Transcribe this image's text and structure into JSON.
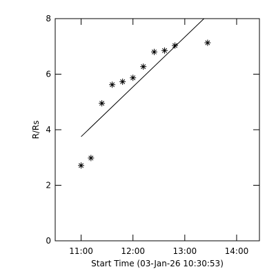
{
  "chart_data": {
    "type": "scatter",
    "y_label": "R/Rs",
    "x_label": "Start Time (03-Jan-26 10:30:53)",
    "xlim": [
      10.5,
      14.44
    ],
    "xticks": [
      {
        "value": 11,
        "label": "11:00"
      },
      {
        "value": 12,
        "label": "12:00"
      },
      {
        "value": 13,
        "label": "13:00"
      },
      {
        "value": 14,
        "label": "14:00"
      }
    ],
    "ylim": [
      0,
      8
    ],
    "yticks": [
      0,
      2,
      4,
      6,
      8
    ],
    "color": "#000000",
    "series": [
      {
        "marker": "asterisk",
        "x": [
          11.0,
          11.19,
          11.4,
          11.6,
          11.8,
          12.0,
          12.2,
          12.41,
          12.61,
          12.81,
          13.44
        ],
        "values": [
          2.71,
          2.98,
          4.95,
          5.62,
          5.73,
          5.87,
          6.27,
          6.8,
          6.85,
          7.03,
          7.13
        ]
      },
      {
        "marker": "line",
        "x": [
          11.0,
          13.37
        ],
        "values": [
          3.75,
          8.0
        ]
      }
    ]
  }
}
